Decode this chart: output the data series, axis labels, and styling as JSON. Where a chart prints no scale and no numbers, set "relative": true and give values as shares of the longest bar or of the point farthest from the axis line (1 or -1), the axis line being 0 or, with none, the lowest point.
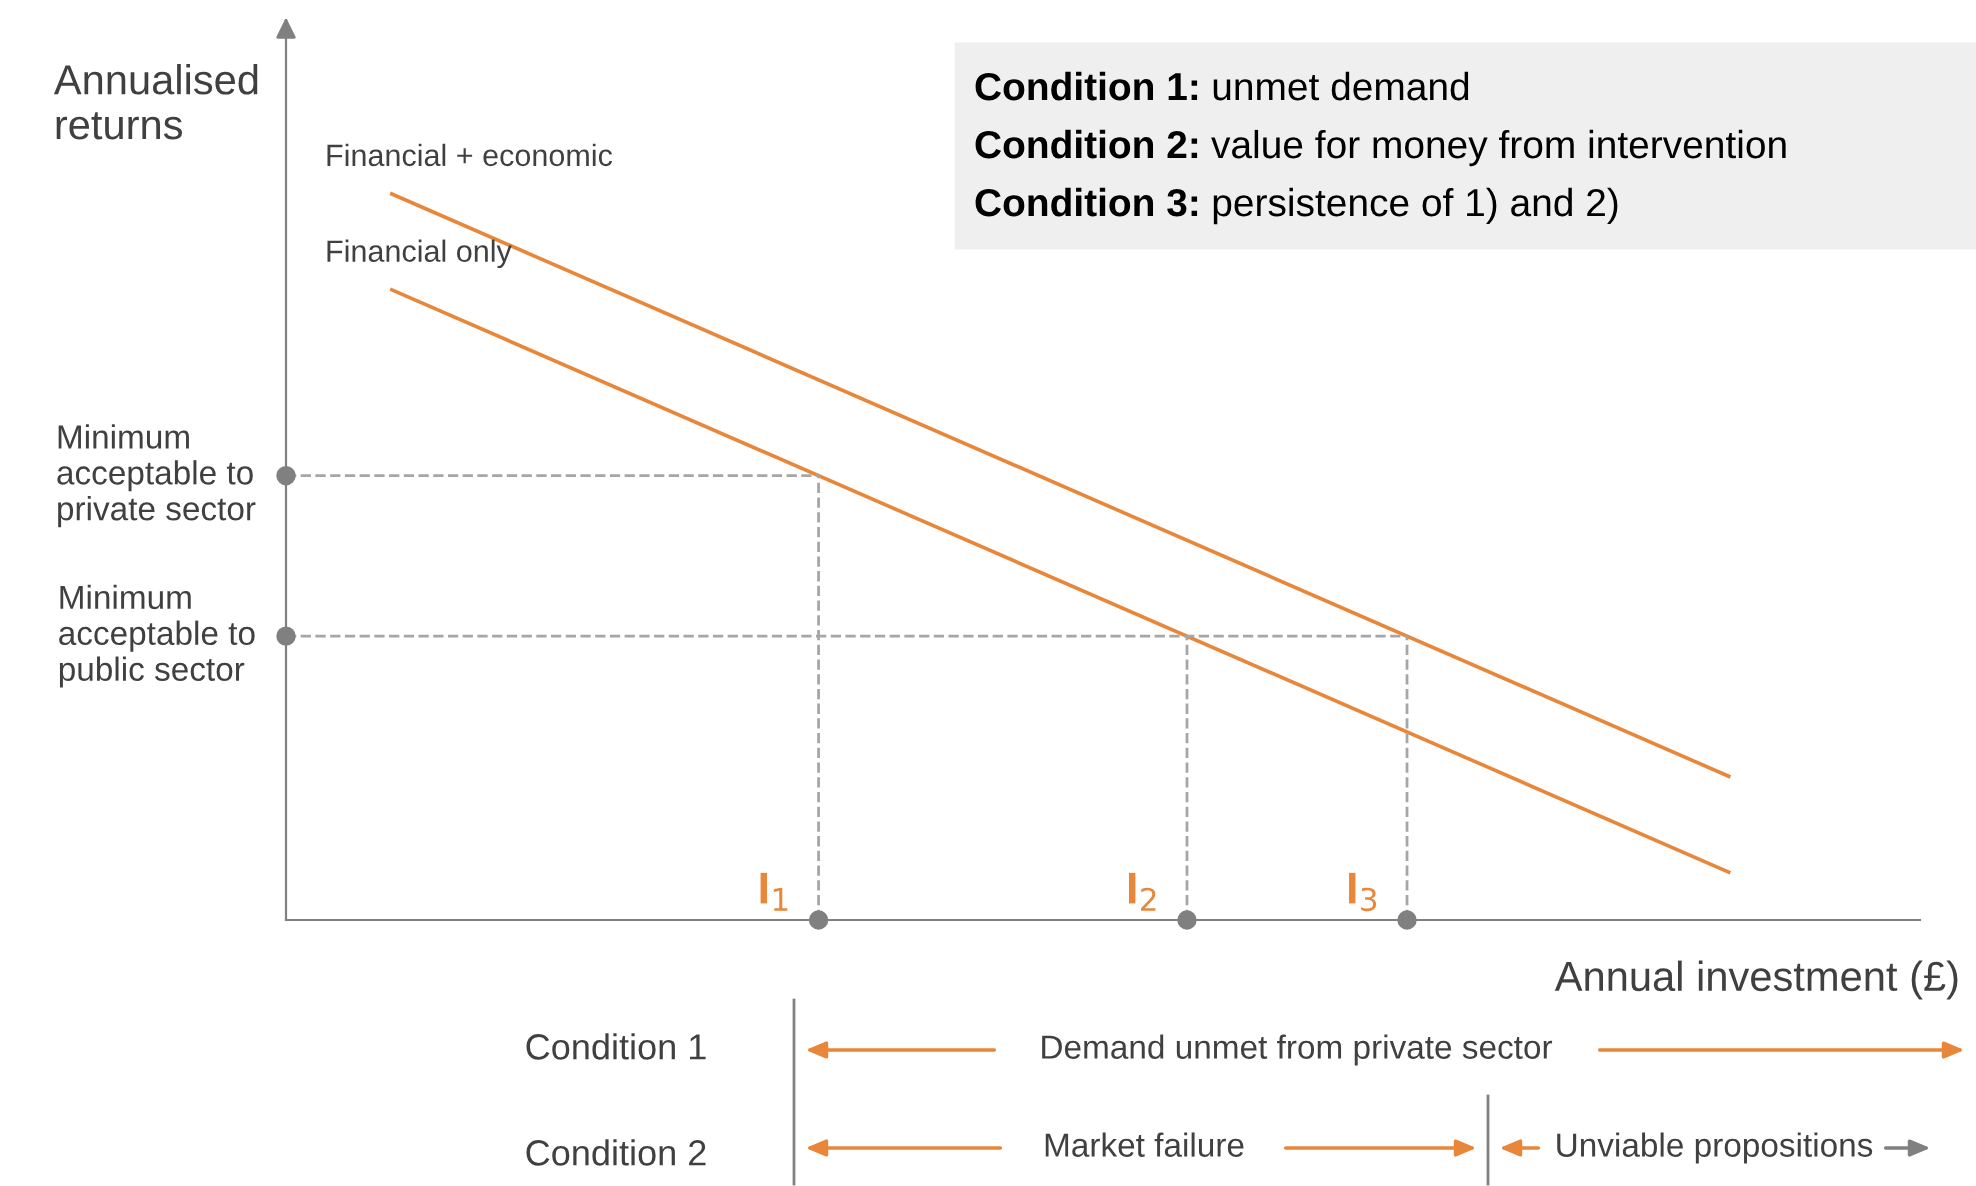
{
  "chart_data": {
    "type": "line",
    "relative": true,
    "xlabel": "Annual investment (£)",
    "ylabel": "Annualised returns",
    "categories": [
      null,
      null
    ],
    "series": [
      {
        "name": "Financial + economic",
        "color": "#e8873a",
        "values": [
          1,
          0.198
        ]
      },
      {
        "name": "Financial only",
        "color": "#e8873a",
        "values": [
          0.868,
          0.066
        ]
      }
    ],
    "ref_lines": [
      {
        "axis": "y",
        "value": 0.612,
        "label": "Minimum acceptable to private sector",
        "color": "#a6a6a6",
        "line_style": "dashed"
      },
      {
        "axis": "y",
        "value": 0.391,
        "label": "Minimum acceptable to public sector",
        "color": "#a6a6a6",
        "line_style": "dashed"
      }
    ],
    "annotations": [
      "I$_{1}$",
      "I$_{2}$",
      "I$_{3}$",
      "Condition 1: unmet demand",
      "Condition 2: value for money from intervention",
      "Condition 3: persistence of 1) and 2)",
      "Condition 1",
      "Demand unmet from private sector",
      "Condition 2",
      "Market failure",
      "Unviable propositions"
    ],
    "marker": "none",
    "line_style": "solid"
  }
}
